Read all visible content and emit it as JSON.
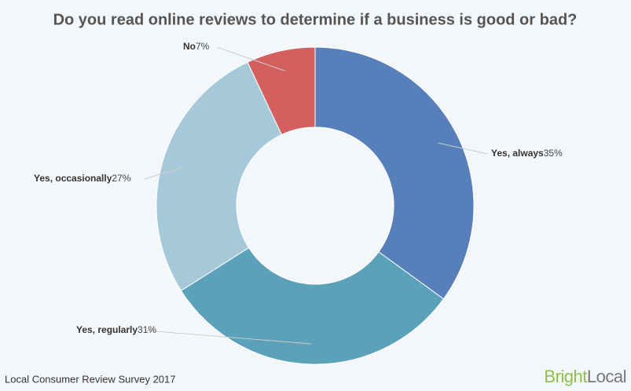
{
  "chart_data": {
    "type": "donut",
    "title": "Do you read online reviews to determine if a business is good or bad?",
    "categories": [
      "Yes, always",
      "Yes, regularly",
      "Yes, occasionally",
      "No"
    ],
    "values": [
      35,
      31,
      27,
      7
    ],
    "value_labels": [
      "35%",
      "31%",
      "27%",
      "7%"
    ],
    "colors": [
      "#5780ba",
      "#5aa1b9",
      "#a5c9d8",
      "#d35f5e"
    ],
    "source": "Local Consumer Review Survey 2017",
    "logo": {
      "first": "Bright",
      "second": "Local"
    }
  }
}
